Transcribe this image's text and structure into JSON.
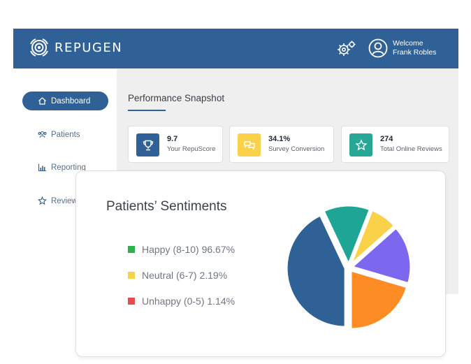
{
  "header": {
    "brand": "REPUGEN",
    "welcome": "Welcome",
    "user_name": "Frank Robles"
  },
  "sidebar": {
    "items": [
      {
        "label": "Dashboard",
        "icon": "home-icon",
        "active": true
      },
      {
        "label": "Patients",
        "icon": "users-icon",
        "active": false
      },
      {
        "label": "Reporting",
        "icon": "bar-chart-icon",
        "active": false
      },
      {
        "label": "Reviews",
        "icon": "star-icon",
        "active": false
      }
    ]
  },
  "snapshot": {
    "title": "Performance Snapshot",
    "kpis": [
      {
        "value": "9.7",
        "label": "Your RepuScore",
        "icon": "trophy-icon",
        "color": "#2f6196"
      },
      {
        "value": "34.1%",
        "label": "Survey Conversion",
        "icon": "chat-bubbles-icon",
        "color": "#f9d24a"
      },
      {
        "value": "274",
        "label": "Total Online Reviews",
        "icon": "star-icon",
        "color": "#27a897"
      }
    ]
  },
  "sentiments": {
    "title": "Patients’ Sentiments",
    "legend": [
      {
        "label": "Happy (8-10) 96.67%",
        "color": "#2bb24c"
      },
      {
        "label": "Neutral (6-7) 2.19%",
        "color": "#f9d24a"
      },
      {
        "label": "Unhappy (0-5) 1.14%",
        "color": "#e84c4c"
      }
    ]
  },
  "chart_data": {
    "type": "pie",
    "slices": [
      {
        "value": 40,
        "color": "#2f6196"
      },
      {
        "value": 12,
        "color": "#1fa595"
      },
      {
        "value": 7,
        "color": "#f9d24a"
      },
      {
        "value": 15,
        "color": "#7b68ee"
      },
      {
        "value": 19,
        "color": "#fd8c24"
      }
    ],
    "exploded": true
  }
}
